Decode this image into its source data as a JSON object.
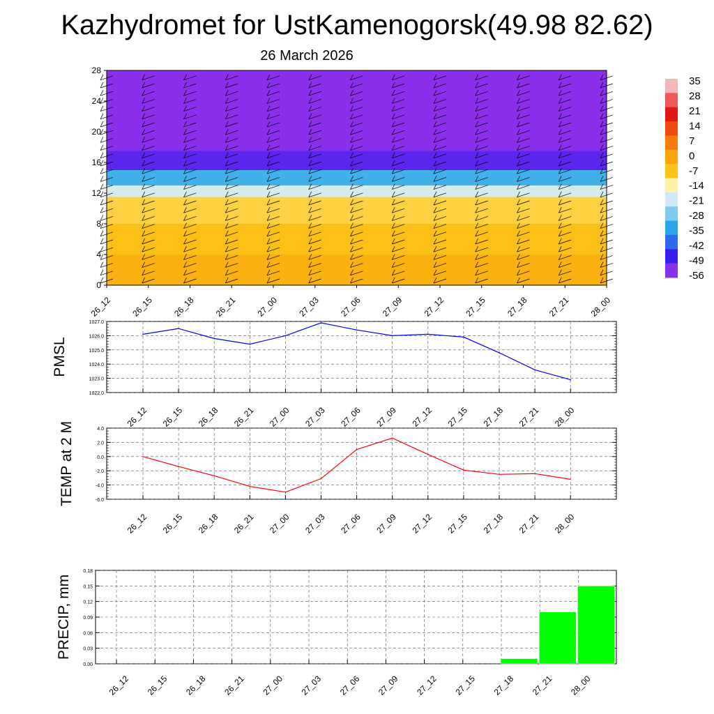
{
  "title": "Kazhydromet for UstKamenogorsk(49.98 82.62)",
  "subtitle": "26 March 2026",
  "chart_data": [
    {
      "type": "heatmap",
      "name": "temperature-wind cross section",
      "x_labels": [
        "26_12",
        "26_15",
        "26_18",
        "26_21",
        "27_00",
        "27_03",
        "27_06",
        "27_09",
        "27_12",
        "27_15",
        "27_18",
        "27_21",
        "28_00"
      ],
      "y_ticks": [
        0,
        4,
        8,
        12,
        16,
        20,
        24,
        28
      ],
      "ylim": [
        0,
        28
      ],
      "bands": [
        {
          "from": 0,
          "to": 4,
          "value": -3
        },
        {
          "from": 4,
          "to": 8,
          "value": -6
        },
        {
          "from": 8,
          "to": 11.5,
          "value": -9
        },
        {
          "from": 11.5,
          "to": 13,
          "value": -20
        },
        {
          "from": 13,
          "to": 15,
          "value": -33
        },
        {
          "from": 15,
          "to": 17.5,
          "value": -52
        },
        {
          "from": 17.5,
          "to": 28,
          "value": -58
        }
      ],
      "colorbar": {
        "labels": [
          "35",
          "28",
          "21",
          "14",
          "7",
          "0",
          "-7",
          "-14",
          "-21",
          "-28",
          "-35",
          "-42",
          "-49",
          "-56"
        ],
        "colors": [
          "#f4b6b6",
          "#ee5a5a",
          "#e01818",
          "#f04a0e",
          "#f77d0a",
          "#fba50c",
          "#fcc419",
          "#fef3a8",
          "#cfeaf7",
          "#7fcbf0",
          "#2aa6ea",
          "#3068ee",
          "#3a1ef0",
          "#8a30ec"
        ]
      }
    },
    {
      "type": "line",
      "ylabel": "PMSL",
      "x": [
        "26_12",
        "26_15",
        "26_18",
        "26_21",
        "27_00",
        "27_03",
        "27_06",
        "27_09",
        "27_12",
        "27_15",
        "27_18",
        "27_21",
        "28_00"
      ],
      "series": [
        {
          "color": "#0000ff",
          "values": [
            1026.1,
            1026.5,
            1025.8,
            1025.4,
            1026.0,
            1026.9,
            1026.4,
            1026.0,
            1026.1,
            1025.9,
            1024.8,
            1023.6,
            1022.9
          ]
        }
      ],
      "ylim": [
        1022.0,
        1027.0
      ],
      "y_ticks": [
        "1022.0",
        "1023.0",
        "1024.0",
        "1025.0",
        "1026.0",
        "1027.0"
      ],
      "grid": true
    },
    {
      "type": "line",
      "ylabel": "TEMP at 2 M",
      "x": [
        "26_12",
        "26_15",
        "26_18",
        "26_21",
        "27_00",
        "27_03",
        "27_06",
        "27_09",
        "27_12",
        "27_15",
        "27_18",
        "27_21",
        "28_00"
      ],
      "series": [
        {
          "color": "#ff0000",
          "values": [
            0.0,
            -1.4,
            -2.7,
            -4.2,
            -5.0,
            -3.1,
            1.0,
            2.6,
            0.3,
            -1.9,
            -2.5,
            -2.4,
            -3.2
          ]
        }
      ],
      "ylim": [
        -6.0,
        4.0
      ],
      "y_ticks": [
        "-6.0",
        "-4.0",
        "-2.0",
        "0.0",
        "2.0",
        "4.0"
      ],
      "grid": true
    },
    {
      "type": "bar",
      "ylabel": "PRECIP, mm",
      "categories": [
        "26_12",
        "26_15",
        "26_18",
        "26_21",
        "27_00",
        "27_03",
        "27_06",
        "27_09",
        "27_12",
        "27_15",
        "27_18",
        "27_21",
        "28_00"
      ],
      "values": [
        0,
        0,
        0,
        0,
        0,
        0,
        0,
        0,
        0,
        0,
        0.01,
        0.1,
        0.15
      ],
      "color": "#00ff00",
      "ylim": [
        0,
        0.18
      ],
      "y_ticks": [
        "0.00",
        "0.03",
        "0.06",
        "0.09",
        "0.12",
        "0.15",
        "0.18"
      ],
      "grid": true
    }
  ]
}
